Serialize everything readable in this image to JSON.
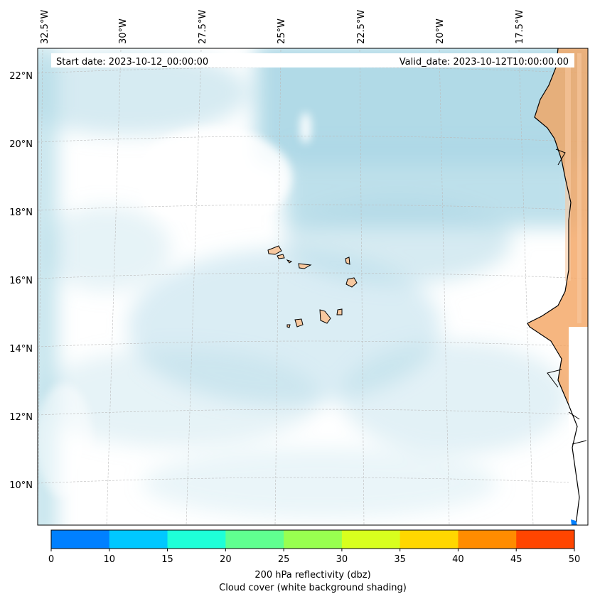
{
  "info": {
    "start_date": "Start date: 2023-10-12_00:00:00",
    "valid_date": "Valid_date: 2023-10-12T10:00:00.00"
  },
  "axes": {
    "lon_labels": [
      "32.5°W",
      "30°W",
      "27.5°W",
      "25°W",
      "22.5°W",
      "20°W",
      "17.5°W"
    ],
    "lat_labels": [
      "22°N",
      "20°N",
      "18°N",
      "16°N",
      "14°N",
      "12°N",
      "10°N"
    ]
  },
  "colorbar": {
    "ticks": [
      "0",
      "10",
      "15",
      "20",
      "25",
      "30",
      "35",
      "40",
      "45",
      "50"
    ],
    "colors": [
      "#0080ff",
      "#00c8ff",
      "#1effd8",
      "#60ff90",
      "#98ff50",
      "#d8ff1e",
      "#ffd700",
      "#ff8c00",
      "#ff4500"
    ],
    "label_line1": "200 hPa reflectivity (dbz)",
    "label_line2": "Cloud cover (white background shading)"
  },
  "colors": {
    "cloud": "#add8e6",
    "land": "#f4a460",
    "coast": "#000000",
    "grid": "#bbbbbb"
  }
}
